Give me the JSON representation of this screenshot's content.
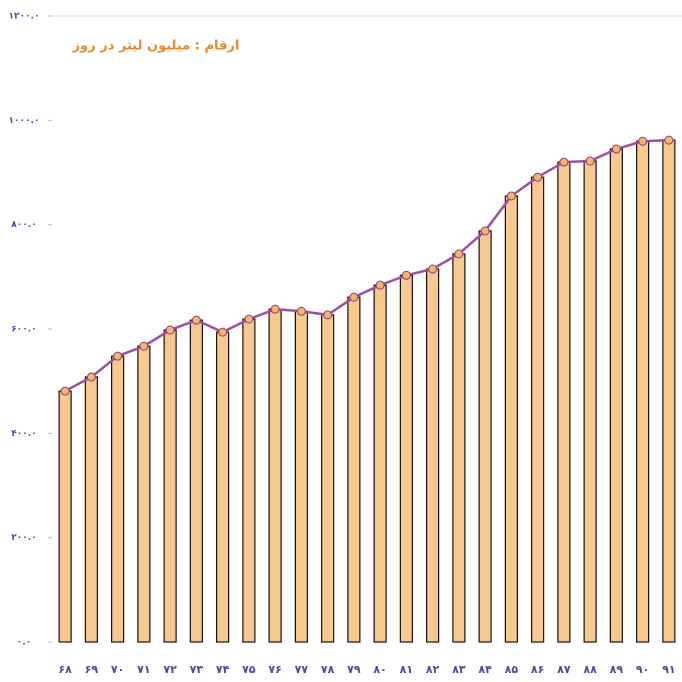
{
  "chart_data": {
    "type": "bar",
    "annotation": "ارقام : میلیون لیتر در روز",
    "categories": [
      "۶۸",
      "۶۹",
      "۷۰",
      "۷۱",
      "۷۲",
      "۷۳",
      "۷۴",
      "۷۵",
      "۷۶",
      "۷۷",
      "۷۸",
      "۷۹",
      "۸۰",
      "۸۱",
      "۸۲",
      "۸۳",
      "۸۴",
      "۸۵",
      "۸۶",
      "۸۷",
      "۸۸",
      "۸۹",
      "۹۰",
      "۹۱"
    ],
    "values": [
      481,
      508,
      548,
      567,
      598,
      617,
      594,
      619,
      638,
      634,
      627,
      661,
      684,
      703,
      715,
      744,
      788,
      855,
      891,
      920,
      922,
      945,
      960,
      962
    ],
    "color": "#f8c891",
    "line_color": "#9b4fa0",
    "marker_color": "#f5b56a",
    "ylim": [
      0,
      1200
    ],
    "yticks": [
      {
        "value": 0,
        "label": "۰.۰"
      },
      {
        "value": 200,
        "label": "۲۰۰.۰"
      },
      {
        "value": 400,
        "label": "۴۰۰.۰"
      },
      {
        "value": 600,
        "label": "۶۰۰.۰"
      },
      {
        "value": 800,
        "label": "۸۰۰.۰"
      },
      {
        "value": 1000,
        "label": "۱۰۰۰.۰"
      },
      {
        "value": 1200,
        "label": "۱۲۰۰.۰"
      }
    ]
  }
}
